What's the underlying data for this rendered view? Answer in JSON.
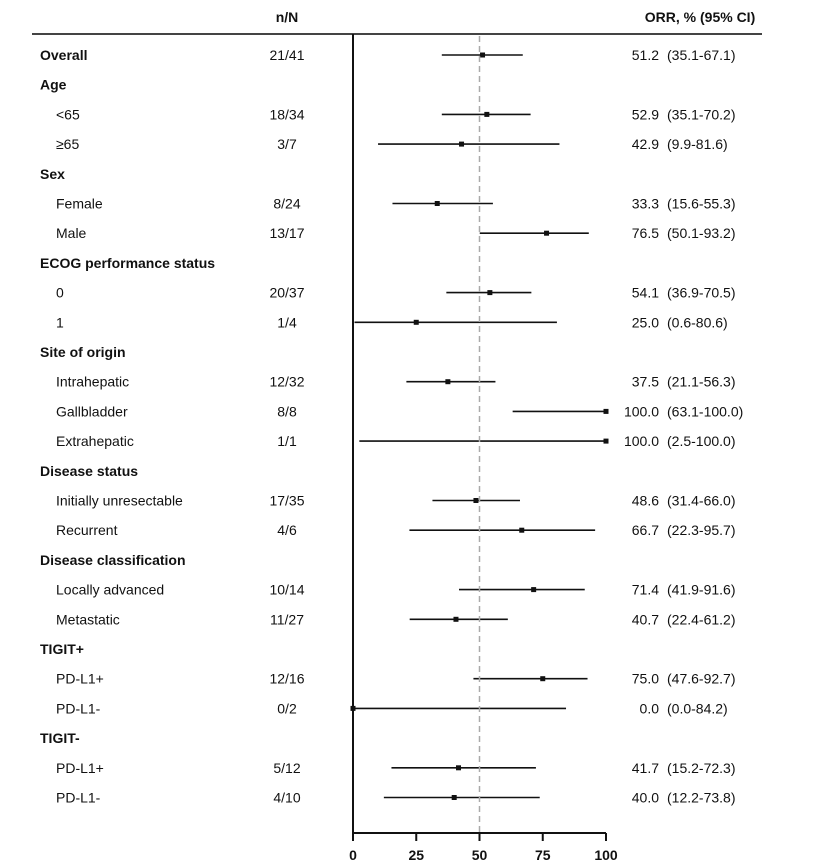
{
  "chart_data": {
    "type": "forest",
    "columns": {
      "n_header": "n/N",
      "orr_header": "ORR, % (95% CI)"
    },
    "xlim": [
      0,
      100
    ],
    "xticks": [
      0,
      25,
      50,
      75,
      100
    ],
    "reference_line": 50,
    "rows": [
      {
        "label": "Overall",
        "kind": "overall",
        "n": "21/41",
        "orr": 51.2,
        "low": 35.1,
        "high": 67.1,
        "ci_text": "(35.1-67.1)",
        "orr_text": "51.2"
      },
      {
        "label": "Age",
        "kind": "header"
      },
      {
        "label": "<65",
        "kind": "sub",
        "n": "18/34",
        "orr": 52.9,
        "low": 35.1,
        "high": 70.2,
        "orr_text": "52.9",
        "ci_text": "(35.1-70.2)"
      },
      {
        "label": "≥65",
        "kind": "sub",
        "n": "3/7",
        "orr": 42.9,
        "low": 9.9,
        "high": 81.6,
        "orr_text": "42.9",
        "ci_text": "(9.9-81.6)"
      },
      {
        "label": "Sex",
        "kind": "header"
      },
      {
        "label": "Female",
        "kind": "sub",
        "n": "8/24",
        "orr": 33.3,
        "low": 15.6,
        "high": 55.3,
        "orr_text": "33.3",
        "ci_text": "(15.6-55.3)"
      },
      {
        "label": "Male",
        "kind": "sub",
        "n": "13/17",
        "orr": 76.5,
        "low": 50.1,
        "high": 93.2,
        "orr_text": "76.5",
        "ci_text": "(50.1-93.2)"
      },
      {
        "label": "ECOG performance status",
        "kind": "header"
      },
      {
        "label": "0",
        "kind": "sub",
        "n": "20/37",
        "orr": 54.1,
        "low": 36.9,
        "high": 70.5,
        "orr_text": "54.1",
        "ci_text": "(36.9-70.5)"
      },
      {
        "label": "1",
        "kind": "sub",
        "n": "1/4",
        "orr": 25.0,
        "low": 0.6,
        "high": 80.6,
        "orr_text": "25.0",
        "ci_text": "(0.6-80.6)"
      },
      {
        "label": "Site of origin",
        "kind": "header"
      },
      {
        "label": "Intrahepatic",
        "kind": "sub",
        "n": "12/32",
        "orr": 37.5,
        "low": 21.1,
        "high": 56.3,
        "orr_text": "37.5",
        "ci_text": "(21.1-56.3)"
      },
      {
        "label": "Gallbladder",
        "kind": "sub",
        "n": "8/8",
        "orr": 100.0,
        "low": 63.1,
        "high": 100.0,
        "orr_text": "100.0",
        "ci_text": "(63.1-100.0)"
      },
      {
        "label": "Extrahepatic",
        "kind": "sub",
        "n": "1/1",
        "orr": 100.0,
        "low": 2.5,
        "high": 100.0,
        "orr_text": "100.0",
        "ci_text": "(2.5-100.0)"
      },
      {
        "label": "Disease status",
        "kind": "header"
      },
      {
        "label": "Initially unresectable",
        "kind": "sub",
        "n": "17/35",
        "orr": 48.6,
        "low": 31.4,
        "high": 66.0,
        "orr_text": "48.6",
        "ci_text": "(31.4-66.0)"
      },
      {
        "label": "Recurrent",
        "kind": "sub",
        "n": "4/6",
        "orr": 66.7,
        "low": 22.3,
        "high": 95.7,
        "orr_text": "66.7",
        "ci_text": "(22.3-95.7)"
      },
      {
        "label": "Disease classification",
        "kind": "header"
      },
      {
        "label": "Locally advanced",
        "kind": "sub",
        "n": "10/14",
        "orr": 71.4,
        "low": 41.9,
        "high": 91.6,
        "orr_text": "71.4",
        "ci_text": "(41.9-91.6)"
      },
      {
        "label": "Metastatic",
        "kind": "sub",
        "n": "11/27",
        "orr": 40.7,
        "low": 22.4,
        "high": 61.2,
        "orr_text": "40.7",
        "ci_text": "(22.4-61.2)"
      },
      {
        "label": "TIGIT+",
        "kind": "header"
      },
      {
        "label": "PD-L1+",
        "kind": "sub",
        "n": "12/16",
        "orr": 75.0,
        "low": 47.6,
        "high": 92.7,
        "orr_text": "75.0",
        "ci_text": "(47.6-92.7)"
      },
      {
        "label": "PD-L1-",
        "kind": "sub",
        "n": "0/2",
        "orr": 0.0,
        "low": 0.0,
        "high": 84.2,
        "orr_text": "0.0",
        "ci_text": "(0.0-84.2)"
      },
      {
        "label": "TIGIT-",
        "kind": "header"
      },
      {
        "label": "PD-L1+",
        "kind": "sub",
        "n": "5/12",
        "orr": 41.7,
        "low": 15.2,
        "high": 72.3,
        "orr_text": "41.7",
        "ci_text": "(15.2-72.3)"
      },
      {
        "label": "PD-L1-",
        "kind": "sub",
        "n": "4/10",
        "orr": 40.0,
        "low": 12.2,
        "high": 73.8,
        "orr_text": "40.0",
        "ci_text": "(12.2-73.8)"
      }
    ]
  }
}
